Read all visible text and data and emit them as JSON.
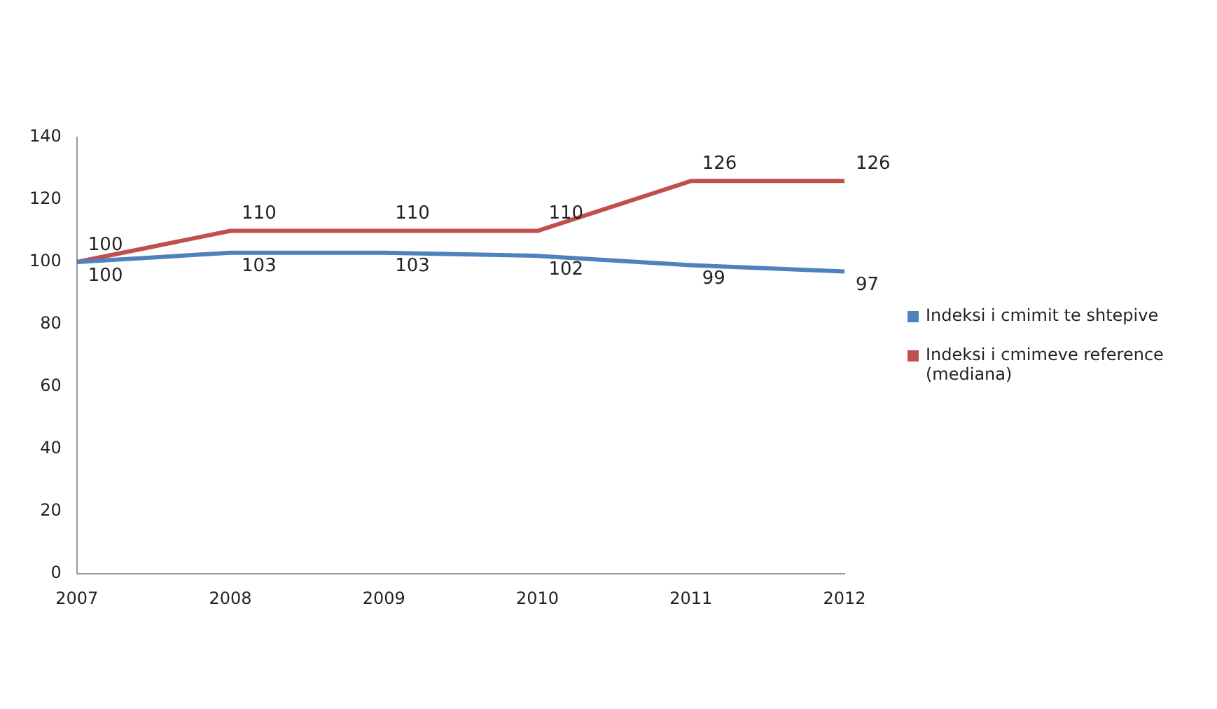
{
  "chart_data": {
    "type": "line",
    "categories": [
      "2007",
      "2008",
      "2009",
      "2010",
      "2011",
      "2012"
    ],
    "series": [
      {
        "name": "Indeksi i cmimit te shtepive",
        "color": "#4f81bd",
        "values": [
          100,
          103,
          103,
          102,
          99,
          97
        ]
      },
      {
        "name": "Indeksi i cmimeve reference (mediana)",
        "color": "#c0504d",
        "values": [
          100,
          110,
          110,
          110,
          126,
          126
        ]
      }
    ],
    "ylim": [
      0,
      140
    ],
    "yticks": [
      0,
      20,
      40,
      60,
      80,
      100,
      120,
      140
    ],
    "grid": false,
    "legend": "right",
    "marker": "none",
    "line_style": "solid",
    "data_labels": true
  }
}
